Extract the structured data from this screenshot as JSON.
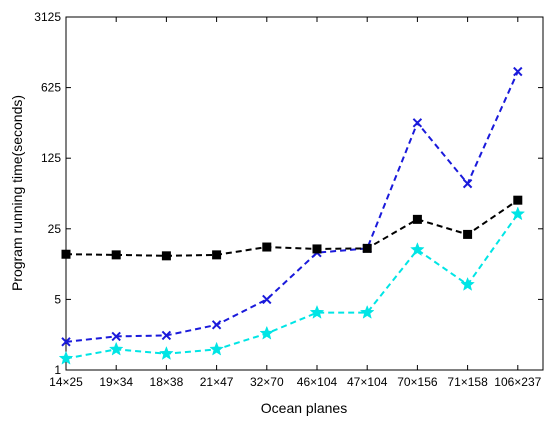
{
  "chart_data": {
    "type": "line",
    "xlabel": "Ocean planes",
    "ylabel": "Program running time(seconds)",
    "yscale": "log",
    "ylim": [
      1,
      3125
    ],
    "yticks": [
      "1",
      "5",
      "25",
      "125",
      "625",
      "3125"
    ],
    "yticks_values": [
      1,
      5,
      25,
      125,
      625,
      3125
    ],
    "grid": false,
    "categories": [
      "14×25",
      "19×34",
      "18×38",
      "21×47",
      "32×70",
      "46×104",
      "47×104",
      "70×156",
      "71×158",
      "106×237"
    ],
    "series": [
      {
        "marker": "cross",
        "color": "#1a1adb",
        "values": [
          1.9,
          2.15,
          2.2,
          2.8,
          5.0,
          14.5,
          16.0,
          280.0,
          70.0,
          900.0
        ]
      },
      {
        "marker": "square",
        "color": "#000000",
        "values": [
          14.0,
          13.8,
          13.5,
          13.8,
          16.5,
          15.8,
          16.0,
          31.0,
          22.0,
          48.0
        ]
      },
      {
        "marker": "star",
        "color": "#00e5e5",
        "values": [
          1.3,
          1.6,
          1.45,
          1.6,
          2.3,
          3.7,
          3.7,
          15.5,
          7.0,
          35.0
        ]
      }
    ]
  }
}
